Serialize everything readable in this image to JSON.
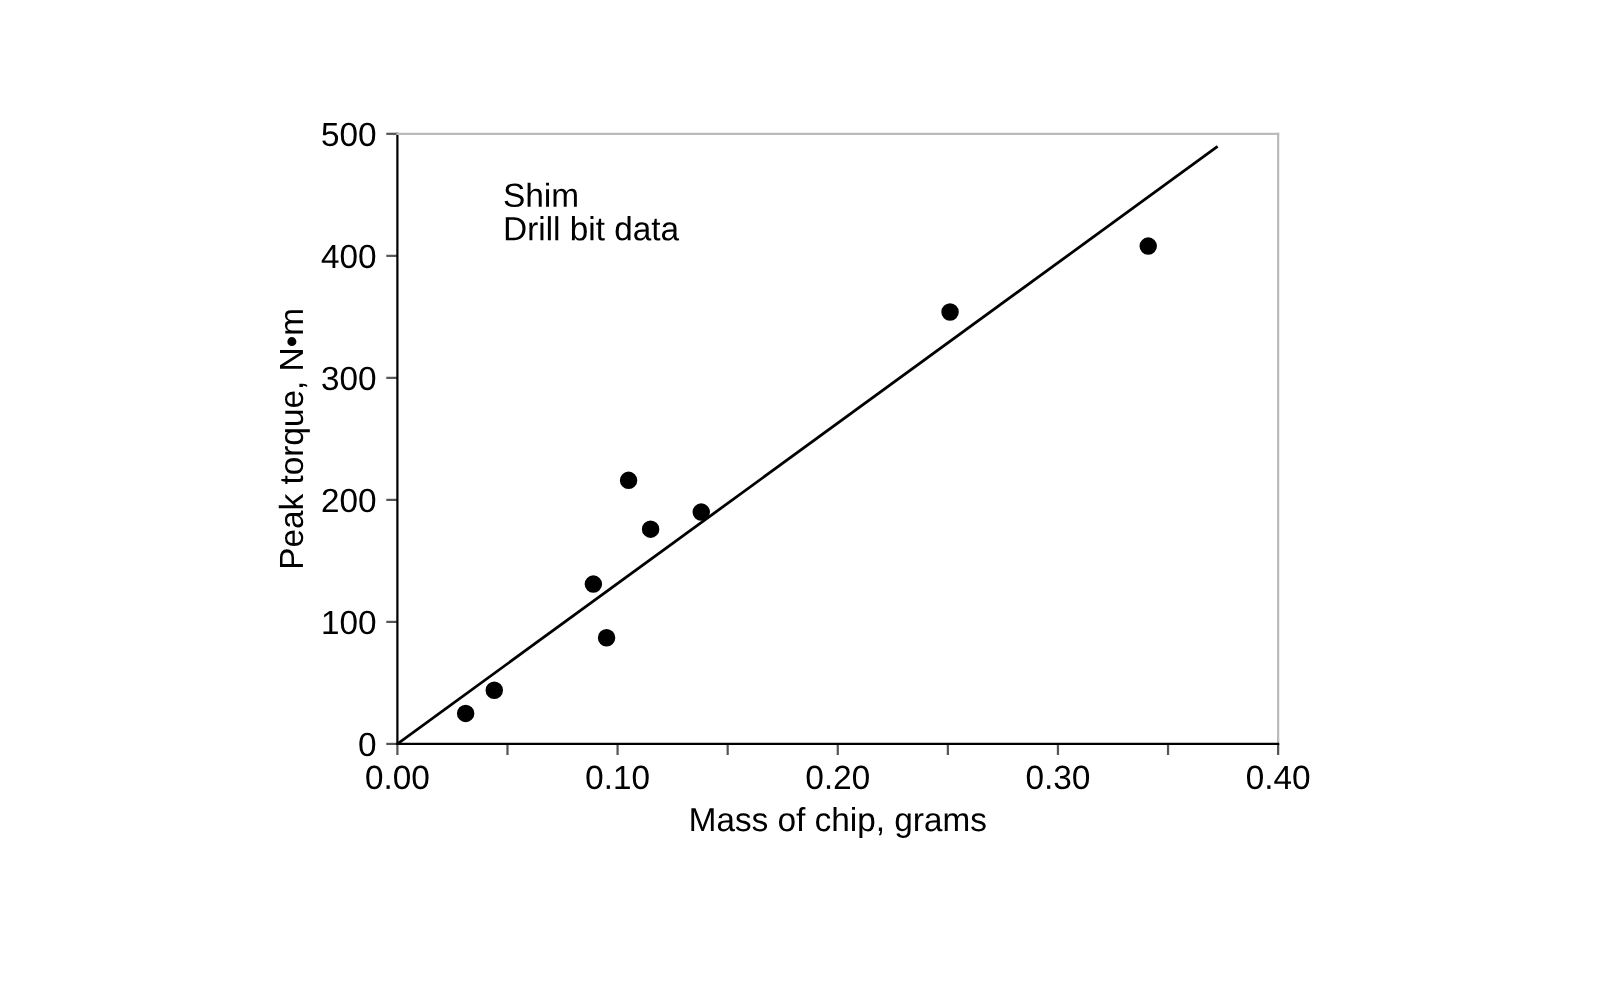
{
  "chart_data": {
    "type": "scatter",
    "xlabel": "Mass of chip, grams",
    "ylabel": "Peak torque, N•m",
    "annotations": [
      "Shim\nDrill bit data"
    ],
    "xlim": [
      0,
      0.4
    ],
    "ylim": [
      0,
      500
    ],
    "xticks": [
      {
        "value": 0,
        "label": "0.00"
      },
      {
        "value": 0.05,
        "label": null
      },
      {
        "value": 0.1,
        "label": "0.10"
      },
      {
        "value": 0.15,
        "label": null
      },
      {
        "value": 0.2,
        "label": "0.20"
      },
      {
        "value": 0.25,
        "label": null
      },
      {
        "value": 0.3,
        "label": "0.30"
      },
      {
        "value": 0.35,
        "label": null
      },
      {
        "value": 0.4,
        "label": "0.40"
      }
    ],
    "yticks": [
      0,
      100,
      200,
      300,
      400,
      500
    ],
    "grid": false,
    "series": [
      {
        "marker": "circle",
        "color": "#000000",
        "x": [
          0.031,
          0.044,
          0.089,
          0.095,
          0.105,
          0.115,
          0.138,
          0.251,
          0.341
        ],
        "values": [
          25,
          44,
          131,
          87,
          216,
          176,
          190,
          354,
          408
        ]
      },
      {
        "type": "line",
        "marker": "none",
        "color": "#000000",
        "x": [
          0,
          0.372
        ],
        "values": [
          0,
          489
        ]
      }
    ]
  }
}
